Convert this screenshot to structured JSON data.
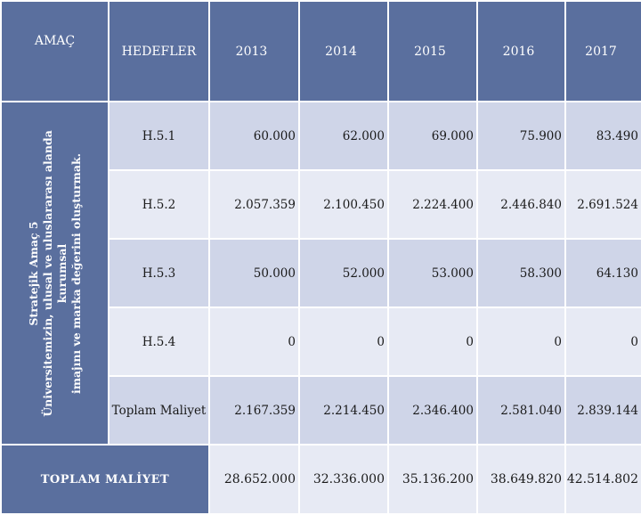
{
  "header": {
    "amac": "AMAÇ",
    "hedefler": "HEDEFLER",
    "years": [
      "2013",
      "2014",
      "2015",
      "2016",
      "2017"
    ]
  },
  "side_label": {
    "line1": "Stratejik Amaç 5",
    "line2": "Üniversitemizin, ulusal ve uluslararası alanda kurumsal",
    "line3": "imajını ve marka değerini oluşturmak."
  },
  "rows": [
    {
      "label": "H.5.1",
      "values": [
        "60.000",
        "62.000",
        "69.000",
        "75.900",
        "83.490"
      ]
    },
    {
      "label": "H.5.2",
      "values": [
        "2.057.359",
        "2.100.450",
        "2.224.400",
        "2.446.840",
        "2.691.524"
      ]
    },
    {
      "label": "H.5.3",
      "values": [
        "50.000",
        "52.000",
        "53.000",
        "58.300",
        "64.130"
      ]
    },
    {
      "label": "H.5.4",
      "values": [
        "0",
        "0",
        "0",
        "0",
        "0"
      ]
    },
    {
      "label": "Toplam Maliyet",
      "values": [
        "2.167.359",
        "2.214.450",
        "2.346.400",
        "2.581.040",
        "2.839.144"
      ]
    }
  ],
  "grand_total": {
    "label": "TOPLAM MALİYET",
    "values": [
      "28.652.000",
      "32.336.000",
      "35.136.200",
      "38.649.820",
      "42.514.802"
    ]
  }
}
